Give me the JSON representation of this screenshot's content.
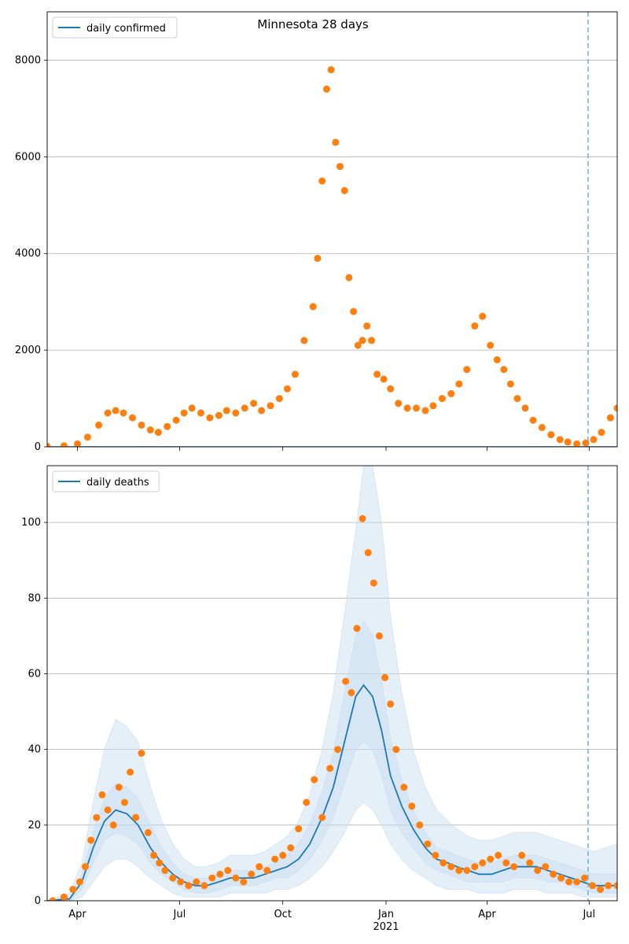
{
  "figure": {
    "suptitle": "Minnesota 28 days",
    "colors": {
      "model_line": "#1f77b4",
      "observed_points": "#ff7f0e",
      "band": "#c6dbef",
      "forecast_marker": "#6baed6",
      "grid": "#b0b0b0"
    }
  },
  "chart_data": [
    {
      "type": "scatter",
      "panel": "top",
      "title": "Minnesota 28 days",
      "legend": [
        "daily confirmed"
      ],
      "legend_placement": "top-left",
      "x_tick_labels": [
        "Apr",
        "Jul",
        "Oct",
        "Jan",
        "Apr",
        "Jul"
      ],
      "x_year_label": "2021",
      "x_range": [
        "2020-03-05",
        "2021-07-26"
      ],
      "ylim": [
        0,
        9000
      ],
      "y_ticks": [
        0,
        2000,
        4000,
        6000,
        8000
      ],
      "grid": "horizontal",
      "forecast_start": "2021-06-30",
      "model_line_value": 0,
      "series_observed": {
        "name": "daily confirmed",
        "x": [
          "2020-03-05",
          "2020-03-20",
          "2020-04-01",
          "2020-04-10",
          "2020-04-20",
          "2020-04-28",
          "2020-05-05",
          "2020-05-12",
          "2020-05-20",
          "2020-05-28",
          "2020-06-05",
          "2020-06-12",
          "2020-06-20",
          "2020-06-28",
          "2020-07-05",
          "2020-07-12",
          "2020-07-20",
          "2020-07-28",
          "2020-08-05",
          "2020-08-12",
          "2020-08-20",
          "2020-08-28",
          "2020-09-05",
          "2020-09-12",
          "2020-09-20",
          "2020-09-28",
          "2020-10-05",
          "2020-10-12",
          "2020-10-20",
          "2020-10-28",
          "2020-11-01",
          "2020-11-05",
          "2020-11-09",
          "2020-11-13",
          "2020-11-17",
          "2020-11-21",
          "2020-11-25",
          "2020-11-29",
          "2020-12-03",
          "2020-12-07",
          "2020-12-11",
          "2020-12-15",
          "2020-12-19",
          "2020-12-24",
          "2020-12-30",
          "2021-01-05",
          "2021-01-12",
          "2021-01-20",
          "2021-01-28",
          "2021-02-05",
          "2021-02-12",
          "2021-02-20",
          "2021-02-28",
          "2021-03-07",
          "2021-03-14",
          "2021-03-21",
          "2021-03-28",
          "2021-04-04",
          "2021-04-10",
          "2021-04-16",
          "2021-04-22",
          "2021-04-28",
          "2021-05-05",
          "2021-05-12",
          "2021-05-20",
          "2021-05-28",
          "2021-06-05",
          "2021-06-12",
          "2021-06-20",
          "2021-06-28",
          "2021-07-05",
          "2021-07-12",
          "2021-07-20",
          "2021-07-26"
        ],
        "y": [
          10,
          20,
          60,
          200,
          450,
          700,
          750,
          700,
          600,
          450,
          350,
          300,
          420,
          550,
          700,
          800,
          700,
          600,
          650,
          750,
          700,
          800,
          900,
          750,
          850,
          1000,
          1200,
          1500,
          2200,
          2900,
          3900,
          5500,
          7400,
          7800,
          6300,
          5800,
          5300,
          3500,
          2800,
          2100,
          2200,
          2500,
          2200,
          1500,
          1400,
          1200,
          900,
          800,
          800,
          750,
          850,
          1000,
          1100,
          1300,
          1600,
          2500,
          2700,
          2100,
          1800,
          1600,
          1300,
          1000,
          800,
          550,
          400,
          250,
          150,
          100,
          60,
          80,
          150,
          300,
          600,
          800
        ]
      }
    },
    {
      "type": "scatter",
      "panel": "bottom",
      "legend": [
        "daily deaths"
      ],
      "legend_placement": "top-left",
      "x_tick_labels": [
        "Apr",
        "Jul",
        "Oct",
        "Jan",
        "Apr",
        "Jul"
      ],
      "x_year_label": "2021",
      "x_range": [
        "2020-03-05",
        "2021-07-26"
      ],
      "ylim": [
        0,
        115
      ],
      "y_ticks": [
        0,
        20,
        40,
        60,
        80,
        100
      ],
      "grid": "horizontal",
      "forecast_start": "2021-06-30",
      "series_model": {
        "name": "daily deaths",
        "x": [
          "2020-03-05",
          "2020-03-25",
          "2020-04-05",
          "2020-04-15",
          "2020-04-25",
          "2020-05-05",
          "2020-05-15",
          "2020-05-25",
          "2020-06-05",
          "2020-06-15",
          "2020-06-25",
          "2020-07-05",
          "2020-07-15",
          "2020-07-25",
          "2020-08-05",
          "2020-08-15",
          "2020-08-25",
          "2020-09-05",
          "2020-09-15",
          "2020-09-25",
          "2020-10-05",
          "2020-10-15",
          "2020-10-25",
          "2020-11-05",
          "2020-11-15",
          "2020-11-25",
          "2020-12-05",
          "2020-12-12",
          "2020-12-20",
          "2020-12-28",
          "2021-01-05",
          "2021-01-15",
          "2021-01-25",
          "2021-02-05",
          "2021-02-15",
          "2021-02-25",
          "2021-03-05",
          "2021-03-15",
          "2021-03-25",
          "2021-04-05",
          "2021-04-15",
          "2021-04-25",
          "2021-05-05",
          "2021-05-15",
          "2021-05-25",
          "2021-06-05",
          "2021-06-15",
          "2021-06-25",
          "2021-07-05",
          "2021-07-15",
          "2021-07-26"
        ],
        "y": [
          0,
          0.5,
          5,
          14,
          21,
          24,
          23,
          20,
          14,
          10,
          7,
          5,
          4,
          4,
          5,
          6,
          6,
          6,
          7,
          8,
          9,
          11,
          15,
          22,
          30,
          42,
          54,
          57,
          54,
          45,
          33,
          25,
          19,
          14,
          11,
          10,
          9,
          8,
          7,
          7,
          8,
          9,
          9,
          9,
          8,
          7,
          6,
          5,
          4,
          4,
          4
        ]
      },
      "series_observed": {
        "name": "daily deaths",
        "x": [
          "2020-03-10",
          "2020-03-20",
          "2020-03-28",
          "2020-04-03",
          "2020-04-08",
          "2020-04-13",
          "2020-04-18",
          "2020-04-23",
          "2020-04-28",
          "2020-05-03",
          "2020-05-08",
          "2020-05-13",
          "2020-05-18",
          "2020-05-23",
          "2020-05-28",
          "2020-06-03",
          "2020-06-08",
          "2020-06-13",
          "2020-06-18",
          "2020-06-25",
          "2020-07-02",
          "2020-07-09",
          "2020-07-16",
          "2020-07-23",
          "2020-07-30",
          "2020-08-06",
          "2020-08-13",
          "2020-08-20",
          "2020-08-27",
          "2020-09-03",
          "2020-09-10",
          "2020-09-17",
          "2020-09-24",
          "2020-10-01",
          "2020-10-08",
          "2020-10-15",
          "2020-10-22",
          "2020-10-29",
          "2020-11-05",
          "2020-11-12",
          "2020-11-19",
          "2020-11-26",
          "2020-12-01",
          "2020-12-06",
          "2020-12-11",
          "2020-12-16",
          "2020-12-21",
          "2020-12-26",
          "2020-12-31",
          "2021-01-05",
          "2021-01-10",
          "2021-01-17",
          "2021-01-24",
          "2021-01-31",
          "2021-02-07",
          "2021-02-14",
          "2021-02-21",
          "2021-02-28",
          "2021-03-07",
          "2021-03-14",
          "2021-03-21",
          "2021-03-28",
          "2021-04-04",
          "2021-04-11",
          "2021-04-18",
          "2021-04-25",
          "2021-05-02",
          "2021-05-09",
          "2021-05-16",
          "2021-05-23",
          "2021-05-30",
          "2021-06-06",
          "2021-06-13",
          "2021-06-20",
          "2021-06-27",
          "2021-07-04",
          "2021-07-11",
          "2021-07-18",
          "2021-07-26"
        ],
        "y": [
          0,
          1,
          3,
          5,
          9,
          16,
          22,
          28,
          24,
          20,
          30,
          26,
          34,
          22,
          39,
          18,
          12,
          10,
          8,
          6,
          5,
          4,
          5,
          4,
          6,
          7,
          8,
          6,
          5,
          7,
          9,
          8,
          11,
          12,
          14,
          19,
          26,
          32,
          22,
          35,
          40,
          58,
          55,
          72,
          101,
          92,
          84,
          70,
          59,
          52,
          40,
          30,
          25,
          20,
          15,
          12,
          10,
          9,
          8,
          8,
          9,
          10,
          11,
          12,
          10,
          9,
          12,
          10,
          8,
          9,
          7,
          6,
          5,
          5,
          6,
          4,
          3,
          4,
          4
        ]
      },
      "band_inner_upper": [
        0,
        1,
        7,
        18,
        27,
        31,
        30,
        27,
        20,
        14,
        10,
        7,
        6,
        6,
        7,
        8,
        8,
        8,
        9,
        10,
        12,
        15,
        20,
        29,
        39,
        55,
        70,
        74,
        70,
        58,
        43,
        32,
        24,
        18,
        14,
        13,
        12,
        11,
        10,
        10,
        11,
        12,
        12,
        12,
        11,
        10,
        9,
        8,
        7,
        7,
        7
      ],
      "band_inner_lower": [
        0,
        0,
        3,
        10,
        16,
        18,
        17,
        15,
        10,
        7,
        5,
        3,
        2,
        2,
        3,
        4,
        4,
        4,
        5,
        6,
        6,
        8,
        11,
        16,
        22,
        31,
        40,
        42,
        40,
        33,
        24,
        18,
        14,
        10,
        8,
        7,
        6,
        5,
        5,
        5,
        5,
        6,
        6,
        6,
        5,
        5,
        4,
        3,
        2,
        2,
        2
      ],
      "band_outer_upper": [
        0,
        2,
        10,
        26,
        40,
        48,
        46,
        42,
        30,
        21,
        15,
        11,
        9,
        9,
        10,
        12,
        12,
        12,
        13,
        15,
        17,
        21,
        28,
        40,
        55,
        76,
        98,
        115,
        115,
        100,
        75,
        55,
        40,
        30,
        24,
        21,
        19,
        17,
        16,
        16,
        17,
        18,
        18,
        18,
        17,
        16,
        15,
        14,
        13,
        14,
        15
      ],
      "band_outer_lower": [
        0,
        0,
        1,
        5,
        9,
        11,
        11,
        9,
        6,
        4,
        2,
        1,
        1,
        1,
        1,
        2,
        2,
        2,
        2,
        3,
        3,
        4,
        6,
        9,
        13,
        18,
        24,
        26,
        24,
        20,
        15,
        11,
        8,
        6,
        4,
        3,
        3,
        3,
        2,
        2,
        2,
        3,
        3,
        3,
        2,
        2,
        2,
        1,
        1,
        1,
        1
      ]
    }
  ]
}
